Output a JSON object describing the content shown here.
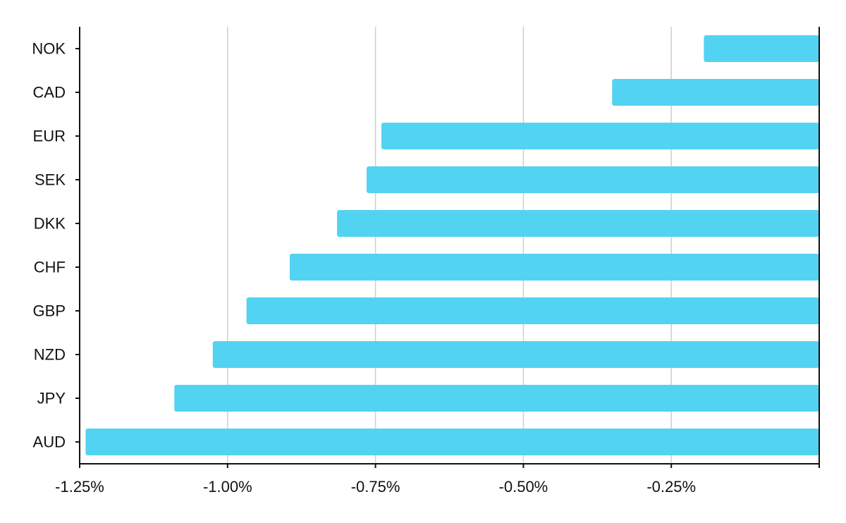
{
  "chart_data": {
    "type": "bar",
    "orientation": "horizontal",
    "categories": [
      "NOK",
      "CAD",
      "EUR",
      "SEK",
      "DKK",
      "CHF",
      "GBP",
      "NZD",
      "JPY",
      "AUD"
    ],
    "values": [
      -0.195,
      -0.35,
      -0.74,
      -0.765,
      -0.815,
      -0.895,
      -0.968,
      -1.025,
      -1.09,
      -1.24
    ],
    "xlim": [
      -1.25,
      0
    ],
    "xticks": [
      -1.25,
      -1.0,
      -0.75,
      -0.5,
      -0.25
    ],
    "xtick_labels": [
      "-1.25%",
      "-1.00%",
      "-0.75%",
      "-0.50%",
      "-0.25%"
    ],
    "title": "",
    "xlabel": "",
    "ylabel": "",
    "grid": "vertical",
    "bar_color": "#52d3f2"
  }
}
